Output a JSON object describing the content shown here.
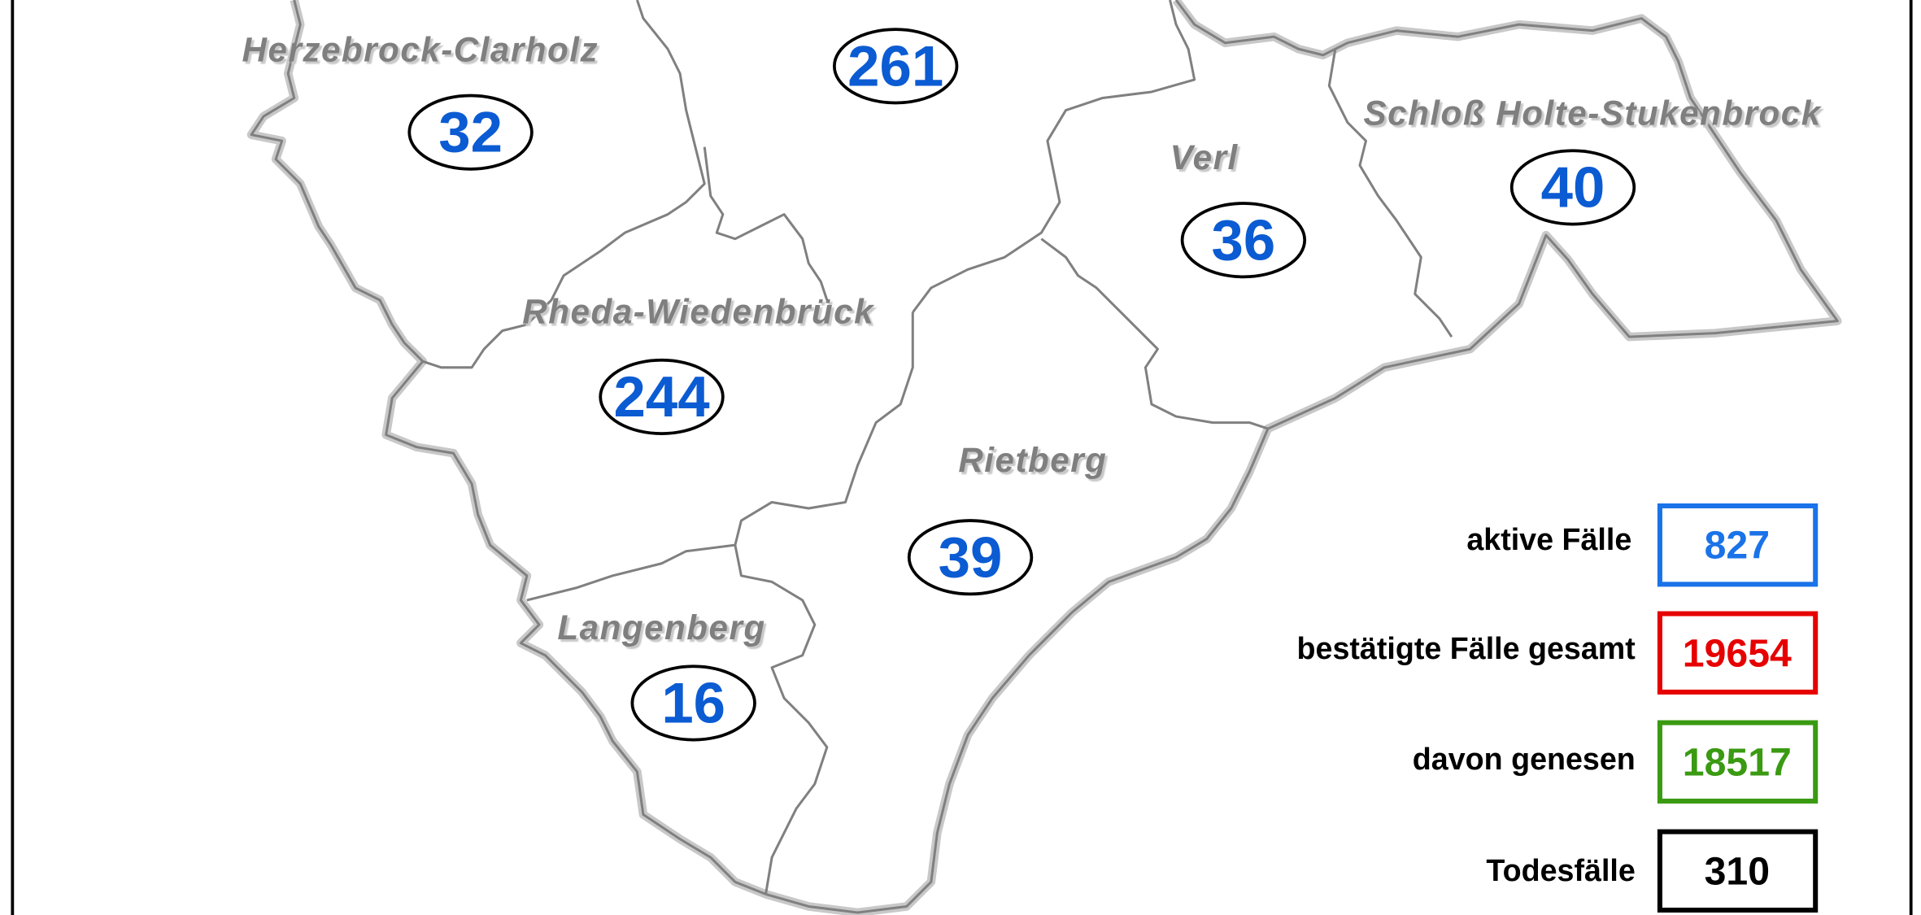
{
  "municipalities": [
    {
      "name": "Herzebrock-Clarholz",
      "active": "32"
    },
    {
      "name": "",
      "active": "261"
    },
    {
      "name": "Schloß Holte-Stukenbrock",
      "active": "40"
    },
    {
      "name": "Verl",
      "active": "36"
    },
    {
      "name": "Rheda-Wiedenbrück",
      "active": "244"
    },
    {
      "name": "Rietberg",
      "active": "39"
    },
    {
      "name": "Langenberg",
      "active": "16"
    }
  ],
  "legend": [
    {
      "label": "aktive Fälle",
      "value": "827",
      "color": "#1a73e8"
    },
    {
      "label": "bestätigte Fälle gesamt",
      "value": "19654",
      "color": "#e60000"
    },
    {
      "label": "davon genesen",
      "value": "18517",
      "color": "#3a9a12"
    },
    {
      "label": "Todesfälle",
      "value": "310",
      "color": "#000000"
    }
  ],
  "colors": {
    "border_outer": "#c8c8c8",
    "border_inner": "#808080",
    "count": "#0b5bd3"
  }
}
